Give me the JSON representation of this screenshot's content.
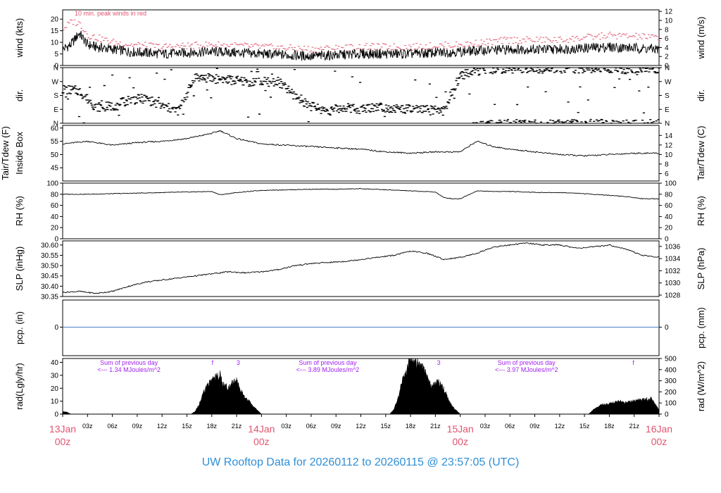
{
  "title": "UW Rooftop Data for 20260112  to  20260115 @ 23:57:05  (UTC)",
  "colors": {
    "date": "#e0546f",
    "title": "#2f8fd6",
    "annotation": "#a020f0",
    "gust": "#e0546f",
    "pcp_line": "#4f7fc6",
    "data": "#000000"
  },
  "time_axis": {
    "hour_labels": [
      "03z",
      "06z",
      "09z",
      "12z",
      "15z",
      "18z",
      "21z"
    ],
    "date_labels": [
      {
        "day": "13Jan",
        "hour": "00z"
      },
      {
        "day": "14Jan",
        "hour": "00z"
      },
      {
        "day": "15Jan",
        "hour": "00z"
      },
      {
        "day": "16Jan",
        "hour": "00z"
      }
    ]
  },
  "chart_data": [
    {
      "type": "line",
      "id": "wind",
      "ylabel_left": "wind (kts)",
      "ylabel_right": "wind (m/s)",
      "ylim": [
        0,
        24
      ],
      "ticks_left": [
        0,
        5,
        10,
        15,
        20
      ],
      "ticks_right": [
        0,
        2,
        4,
        6,
        8,
        10,
        12
      ],
      "annotation": "10 min. peak winds in red",
      "series": [
        {
          "x": [
            0,
            1,
            2,
            3,
            4,
            6,
            8,
            12,
            18,
            24,
            30,
            36,
            42,
            48,
            54,
            60,
            66,
            72
          ],
          "y": [
            7,
            9,
            14,
            9,
            8,
            7,
            6,
            5,
            6,
            5,
            4,
            5,
            5,
            6,
            7,
            7,
            8,
            7
          ]
        },
        {
          "x": [
            0,
            1,
            2,
            3,
            4,
            6,
            8,
            12,
            18,
            24,
            30,
            36,
            42,
            48,
            54,
            60,
            66,
            72
          ],
          "y": [
            16,
            19,
            18,
            13,
            12,
            10,
            9,
            8,
            9,
            8,
            7,
            8,
            8,
            9,
            11,
            11,
            13,
            12
          ]
        }
      ]
    },
    {
      "type": "scatter",
      "id": "dir",
      "ylabel_left": "dir.",
      "ylabel_right": "dir.",
      "ticks_left": [
        "N",
        "E",
        "S",
        "W",
        "N"
      ],
      "ticks_right": [
        "N",
        "E",
        "S",
        "W",
        "N"
      ],
      "x": [
        0,
        2,
        4,
        6,
        8,
        10,
        12,
        14,
        16,
        18,
        20,
        22,
        24,
        26,
        28,
        30,
        32,
        34,
        36,
        38,
        40,
        42,
        44,
        46,
        48,
        50,
        52,
        54,
        56,
        58,
        60,
        62,
        64,
        66,
        68,
        70,
        72
      ],
      "y": [
        220,
        210,
        105,
        110,
        150,
        160,
        110,
        80,
        300,
        290,
        280,
        270,
        265,
        270,
        180,
        110,
        80,
        100,
        90,
        110,
        95,
        90,
        85,
        80,
        310,
        340,
        350,
        355,
        355,
        355,
        355,
        355,
        355,
        355,
        350,
        355,
        355
      ]
    },
    {
      "type": "line",
      "id": "temp",
      "ylabel_left": "Tair/Tdew (F)",
      "ylabel_left2": "Inside Box",
      "ylabel_right": "Tair/Tdew (C)",
      "ylim": [
        40,
        61
      ],
      "ticks_left": [
        45,
        50,
        55,
        60
      ],
      "ticks_right": [
        6,
        8,
        10,
        12,
        14
      ],
      "x": [
        0,
        3,
        6,
        9,
        12,
        15,
        18,
        19,
        21,
        24,
        27,
        30,
        33,
        36,
        39,
        42,
        45,
        48,
        50,
        52,
        54,
        57,
        60,
        63,
        66,
        69,
        72
      ],
      "y": [
        54,
        55,
        53.5,
        54.5,
        55,
        56,
        58,
        59,
        56,
        54,
        53.5,
        53,
        52.5,
        52,
        51,
        50.5,
        51,
        51,
        55,
        53,
        52,
        51,
        50,
        49.5,
        50,
        50.5,
        50.5
      ]
    },
    {
      "type": "line",
      "id": "rh",
      "ylabel_left": "RH (%)",
      "ylabel_right": "RH (%)",
      "ylim": [
        0,
        100
      ],
      "ticks_left": [
        0,
        20,
        40,
        60,
        80,
        100
      ],
      "ticks_right": [
        0,
        20,
        40,
        60,
        80,
        100
      ],
      "x": [
        0,
        3,
        6,
        9,
        12,
        15,
        18,
        19,
        21,
        24,
        27,
        30,
        33,
        36,
        39,
        42,
        45,
        46,
        47,
        48,
        50,
        52,
        54,
        56,
        58,
        60,
        62,
        64,
        66,
        68,
        70,
        72
      ],
      "y": [
        80,
        80,
        81,
        82,
        83,
        84,
        85,
        79,
        83,
        87,
        88,
        89,
        89,
        90,
        88,
        86,
        84,
        74,
        72,
        72,
        86,
        85,
        85,
        84,
        83,
        83,
        82,
        80,
        78,
        76,
        72,
        72
      ]
    },
    {
      "type": "line",
      "id": "slp",
      "ylabel_left": "SLP (inHg)",
      "ylabel_right": "SLP (hPa)",
      "ylim": [
        30.35,
        30.62
      ],
      "ticks_left": [
        30.35,
        30.4,
        30.45,
        30.5,
        30.55,
        30.6
      ],
      "ticks_right": [
        1028,
        1030,
        1032,
        1034,
        1036
      ],
      "x": [
        0,
        2,
        4,
        6,
        8,
        10,
        12,
        14,
        16,
        18,
        20,
        22,
        24,
        26,
        28,
        30,
        32,
        34,
        36,
        38,
        40,
        42,
        44,
        46,
        48,
        50,
        52,
        54,
        56,
        58,
        60,
        62,
        64,
        66,
        68,
        70,
        72
      ],
      "y": [
        30.37,
        30.375,
        30.365,
        30.375,
        30.4,
        30.42,
        30.43,
        30.44,
        30.45,
        30.46,
        30.47,
        30.465,
        30.47,
        30.48,
        30.5,
        30.51,
        30.515,
        30.52,
        30.53,
        30.54,
        30.55,
        30.57,
        30.56,
        30.53,
        30.54,
        30.56,
        30.59,
        30.6,
        30.61,
        30.6,
        30.6,
        30.585,
        30.59,
        30.6,
        30.58,
        30.55,
        30.54
      ]
    },
    {
      "type": "line",
      "id": "pcp",
      "ylabel_left": "pcp. (in)",
      "ylabel_right": "pcp. (mm)",
      "ticks_left": [
        0
      ],
      "ticks_right": [
        0
      ],
      "x": [
        0,
        72
      ],
      "y": [
        0,
        0
      ]
    },
    {
      "type": "area",
      "id": "rad",
      "ylabel_left": "rad(Lgly/hr)",
      "ylabel_right": "rad (W/m^2)",
      "ylim": [
        0,
        43
      ],
      "ticks_left": [
        0,
        10,
        20,
        30,
        40
      ],
      "ticks_right": [
        0,
        100,
        200,
        300,
        400,
        500
      ],
      "annotations": [
        {
          "line1": "Sum of previous day",
          "line2": "<--- 1.34 MJoules/m^2",
          "x": 8
        },
        {
          "line1": "Sum of previous day",
          "line2": "<--- 3.89 MJoules/m^2",
          "x": 32
        },
        {
          "line1": "Sum of previous day",
          "line2": "<--- 3.97 MJoules/m^2",
          "x": 56
        }
      ],
      "marks": [
        {
          "text": "f",
          "x": 18.1
        },
        {
          "text": "3",
          "x": 21.2
        },
        {
          "text": "3",
          "x": 45.4
        },
        {
          "text": "f",
          "x": 68.9
        }
      ],
      "x": [
        0,
        0.5,
        1,
        15.5,
        16,
        16.5,
        17,
        17.5,
        18,
        18.5,
        19,
        19.5,
        20,
        20.5,
        21,
        21.5,
        22,
        22.5,
        23,
        23.5,
        24,
        39.5,
        40,
        40.5,
        41,
        41.5,
        42,
        42.5,
        43,
        43.5,
        44,
        44.5,
        45,
        45.5,
        46,
        46.5,
        47,
        47.5,
        48,
        63.5,
        64,
        65,
        66,
        67,
        68,
        69,
        70,
        71,
        71.5,
        72
      ],
      "y": [
        2,
        1.5,
        0,
        0,
        2,
        8,
        16,
        22,
        27,
        28,
        30,
        22,
        20,
        24,
        26,
        18,
        12,
        10,
        6,
        3,
        0,
        0,
        4,
        12,
        25,
        32,
        44,
        40,
        38,
        36,
        28,
        20,
        24,
        24,
        20,
        12,
        6,
        3,
        0,
        0,
        3,
        7,
        8,
        10,
        9,
        10,
        11,
        12,
        8,
        3
      ]
    }
  ]
}
